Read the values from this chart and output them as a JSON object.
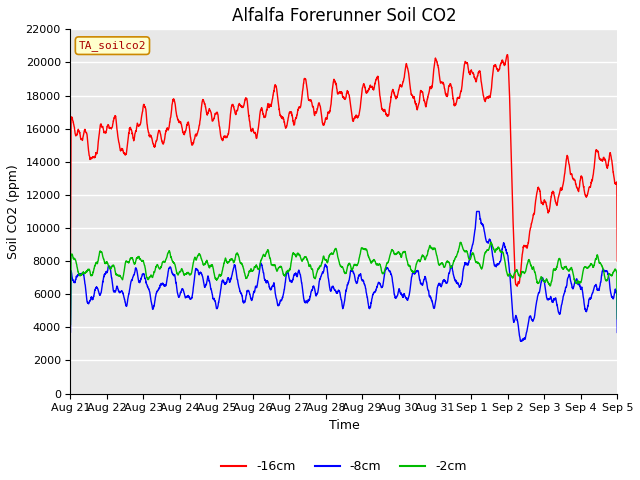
{
  "title": "Alfalfa Forerunner Soil CO2",
  "xlabel": "Time",
  "ylabel": "Soil CO2 (ppm)",
  "ylim": [
    0,
    22000
  ],
  "yticks": [
    0,
    2000,
    4000,
    6000,
    8000,
    10000,
    12000,
    14000,
    16000,
    18000,
    20000,
    22000
  ],
  "fig_bg_color": "#ffffff",
  "plot_bg_color": "#e8e8e8",
  "grid_color": "#ffffff",
  "legend_label": "TA_soilco2",
  "series_labels": [
    "-16cm",
    "-8cm",
    "-2cm"
  ],
  "series_colors": [
    "#ff0000",
    "#0000ff",
    "#00bb00"
  ],
  "x_tick_labels": [
    "Aug 21",
    "Aug 22",
    "Aug 23",
    "Aug 24",
    "Aug 25",
    "Aug 26",
    "Aug 27",
    "Aug 28",
    "Aug 29",
    "Aug 30",
    "Aug 31",
    "Sep 1",
    "Sep 2",
    "Sep 3",
    "Sep 4",
    "Sep 5"
  ],
  "title_fontsize": 12,
  "axis_label_fontsize": 9,
  "tick_fontsize": 8,
  "linewidth": 1.0
}
